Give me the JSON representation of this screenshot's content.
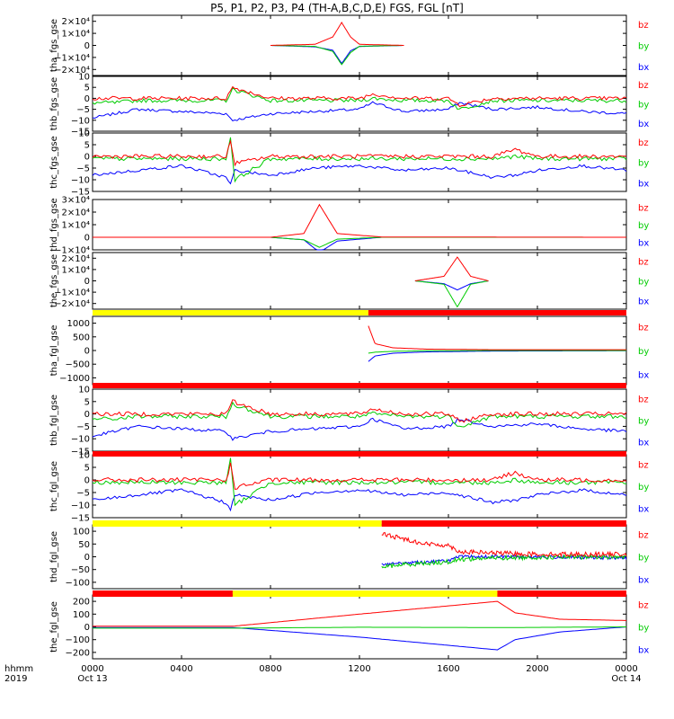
{
  "title": "P5, P1, P2, P3, P4 (TH-A,B,C,D,E) FGS, FGL [nT]",
  "x_axis": {
    "row1_label": "hhmm",
    "row2_label": "2019",
    "ticks": [
      "0000",
      "0400",
      "0800",
      "1200",
      "1600",
      "2000",
      "0000"
    ],
    "tick_hours": [
      0,
      4,
      8,
      12,
      16,
      20,
      24
    ],
    "date_labels": [
      {
        "hour": 0,
        "text": "Oct 13"
      },
      {
        "hour": 24,
        "text": "Oct 14"
      }
    ]
  },
  "colors": {
    "bx": "#0000ff",
    "by": "#00cc00",
    "bz": "#ff0000",
    "yellow": "#ffff00",
    "red": "#ff0000"
  },
  "chart_data": [
    {
      "type": "line",
      "ylabel": "tha_fgs_gse",
      "ylim": [
        -25000,
        25000
      ],
      "yticks": [
        {
          "v": 20000,
          "t": "2×10⁴"
        },
        {
          "v": 10000,
          "t": "1×10⁴"
        },
        {
          "v": 0,
          "t": "0"
        },
        {
          "v": -10000,
          "t": "−1×10⁴"
        },
        {
          "v": -20000,
          "t": "−2×10⁴"
        }
      ],
      "series_x": [
        8.0,
        10.0,
        10.8,
        11.2,
        11.6,
        12.0,
        14.0
      ],
      "series": [
        {
          "name": "bz",
          "values": [
            0,
            900,
            7000,
            19000,
            7000,
            900,
            0
          ]
        },
        {
          "name": "by",
          "values": [
            0,
            -800,
            -5000,
            -16000,
            -6000,
            -700,
            0
          ]
        },
        {
          "name": "bx",
          "values": [
            0,
            -1200,
            -4000,
            -15000,
            -4500,
            -900,
            0
          ]
        }
      ],
      "data_range": [
        8.0,
        14.0
      ]
    },
    {
      "type": "line",
      "ylabel": "thb_fgs_gse",
      "ylim": [
        -15,
        10
      ],
      "yticks": [
        {
          "v": 10,
          "t": "10"
        },
        {
          "v": 5,
          "t": "5"
        },
        {
          "v": 0,
          "t": "0"
        },
        {
          "v": -5,
          "t": "−5"
        },
        {
          "v": -10,
          "t": "−10"
        },
        {
          "v": -15,
          "t": "−15"
        }
      ],
      "series_x": [
        0,
        1,
        2,
        4,
        6,
        6.3,
        8,
        10,
        12,
        12.6,
        14,
        16,
        16.5,
        18,
        20,
        22,
        24
      ],
      "series": [
        {
          "name": "bz",
          "values": [
            0,
            0,
            0,
            0,
            0,
            5,
            0,
            0,
            0,
            2,
            0,
            0,
            -3,
            0,
            0,
            0,
            0
          ]
        },
        {
          "name": "by",
          "values": [
            -2,
            -2,
            -1,
            -1,
            -1,
            4,
            -1,
            -1,
            -1,
            0,
            -1,
            -1,
            -5,
            -1,
            -1,
            -1,
            -1
          ]
        },
        {
          "name": "bx",
          "values": [
            -9,
            -7,
            -5,
            -6,
            -7,
            -10,
            -7,
            -6,
            -5,
            -2,
            -6,
            -5,
            -2,
            -5,
            -4,
            -6,
            -7
          ]
        }
      ],
      "data_range": [
        0,
        24
      ]
    },
    {
      "type": "line",
      "ylabel": "thc_fgs_gse",
      "ylim": [
        -15,
        10
      ],
      "yticks": [
        {
          "v": 10,
          "t": "10"
        },
        {
          "v": 5,
          "t": "5"
        },
        {
          "v": 0,
          "t": "0"
        },
        {
          "v": -5,
          "t": "−5"
        },
        {
          "v": -10,
          "t": "−10"
        },
        {
          "v": -15,
          "t": "−15"
        }
      ],
      "series_x": [
        0,
        2,
        4,
        6,
        6.2,
        6.4,
        8,
        10,
        12,
        14,
        16,
        18,
        19,
        20,
        22,
        24
      ],
      "series": [
        {
          "name": "bz",
          "values": [
            0,
            0,
            0,
            0,
            6,
            -3,
            0,
            0,
            0,
            0,
            0,
            0,
            3,
            0,
            0,
            0
          ]
        },
        {
          "name": "by",
          "values": [
            -1,
            -1,
            -1,
            -1,
            8,
            -10,
            -1,
            -1,
            -1,
            -1,
            -1,
            -1,
            0,
            -1,
            -1,
            -1
          ]
        },
        {
          "name": "bx",
          "values": [
            -8,
            -6,
            -4,
            -9,
            -12,
            -6,
            -8,
            -5,
            -4,
            -6,
            -5,
            -9,
            -8,
            -6,
            -4,
            -6
          ]
        }
      ],
      "data_range": [
        0,
        24
      ]
    },
    {
      "type": "line",
      "ylabel": "thd_fgs_gse",
      "ylim": [
        -10000,
        30000
      ],
      "yticks": [
        {
          "v": 30000,
          "t": "3×10⁴"
        },
        {
          "v": 20000,
          "t": "2×10⁴"
        },
        {
          "v": 10000,
          "t": "1×10⁴"
        },
        {
          "v": 0,
          "t": "0"
        },
        {
          "v": -10000,
          "t": "−1×10⁴"
        }
      ],
      "series_x": [
        0,
        8,
        9.5,
        10.2,
        11,
        13,
        24
      ],
      "series": [
        {
          "name": "bz",
          "values": [
            0,
            0,
            3000,
            26000,
            3000,
            200,
            0
          ]
        },
        {
          "name": "by",
          "values": [
            0,
            0,
            -2000,
            -8000,
            -1500,
            0,
            0
          ]
        },
        {
          "name": "bx",
          "values": [
            0,
            0,
            -2000,
            -12000,
            -3000,
            0,
            0
          ]
        }
      ],
      "data_range": [
        0,
        24
      ]
    },
    {
      "type": "line",
      "ylabel": "the_fgs_gse",
      "ylim": [
        -25000,
        25000
      ],
      "yticks": [
        {
          "v": 20000,
          "t": "2×10⁴"
        },
        {
          "v": 10000,
          "t": "1×10⁴"
        },
        {
          "v": 0,
          "t": "0"
        },
        {
          "v": -10000,
          "t": "−1×10⁴"
        },
        {
          "v": -20000,
          "t": "−2×10⁴"
        }
      ],
      "series_x": [
        14.5,
        15.8,
        16.4,
        17.0,
        17.8
      ],
      "series": [
        {
          "name": "bz",
          "values": [
            0,
            4000,
            21000,
            4000,
            0
          ]
        },
        {
          "name": "by",
          "values": [
            0,
            -3000,
            -23000,
            -3000,
            0
          ]
        },
        {
          "name": "bx",
          "values": [
            0,
            -2500,
            -8000,
            -2500,
            0
          ]
        }
      ],
      "data_range": [
        14.5,
        17.8
      ]
    },
    {
      "type": "line",
      "ylabel": "tha_fgl_gse",
      "ylim": [
        -1250,
        1250
      ],
      "yticks": [
        {
          "v": 1000,
          "t": "1000"
        },
        {
          "v": 500,
          "t": "500"
        },
        {
          "v": 0,
          "t": "0"
        },
        {
          "v": -500,
          "t": "−500"
        },
        {
          "v": -1000,
          "t": "−1000"
        }
      ],
      "series_x": [
        12.4,
        12.7,
        13.5,
        15,
        18,
        24
      ],
      "series": [
        {
          "name": "bz",
          "values": [
            900,
            250,
            100,
            50,
            30,
            30
          ]
        },
        {
          "name": "by",
          "values": [
            -100,
            -60,
            -30,
            -10,
            0,
            0
          ]
        },
        {
          "name": "bx",
          "values": [
            -400,
            -200,
            -100,
            -50,
            -20,
            -10
          ]
        }
      ],
      "data_range": [
        12.4,
        24
      ]
    },
    {
      "type": "line",
      "ylabel": "thb_fgl_gse",
      "ylim": [
        -15,
        10
      ],
      "yticks": [
        {
          "v": 10,
          "t": "10"
        },
        {
          "v": 5,
          "t": "5"
        },
        {
          "v": 0,
          "t": "0"
        },
        {
          "v": -5,
          "t": "−5"
        },
        {
          "v": -10,
          "t": "−10"
        },
        {
          "v": -15,
          "t": "−15"
        }
      ],
      "series_x": [
        0,
        1,
        2,
        4,
        6,
        6.3,
        8,
        10,
        12,
        12.6,
        14,
        16,
        16.5,
        18,
        20,
        22,
        24
      ],
      "series": [
        {
          "name": "bz",
          "values": [
            0,
            0,
            0,
            0,
            0,
            5,
            0,
            0,
            0,
            2,
            0,
            0,
            -3,
            0,
            0,
            0,
            0
          ]
        },
        {
          "name": "by",
          "values": [
            -2,
            -2,
            -1,
            -1,
            -1,
            4,
            -1,
            -1,
            -1,
            0,
            -1,
            -1,
            -5,
            -1,
            -1,
            -1,
            -1
          ]
        },
        {
          "name": "bx",
          "values": [
            -9,
            -7,
            -5,
            -6,
            -7,
            -10,
            -7,
            -6,
            -5,
            -2,
            -6,
            -5,
            -2,
            -5,
            -4,
            -6,
            -7
          ]
        }
      ],
      "data_range": [
        0,
        24
      ]
    },
    {
      "type": "line",
      "ylabel": "thc_fgl_gse",
      "ylim": [
        -15,
        10
      ],
      "yticks": [
        {
          "v": 10,
          "t": "10"
        },
        {
          "v": 5,
          "t": "5"
        },
        {
          "v": 0,
          "t": "0"
        },
        {
          "v": -5,
          "t": "−5"
        },
        {
          "v": -10,
          "t": "−10"
        },
        {
          "v": -15,
          "t": "−15"
        }
      ],
      "series_x": [
        0,
        2,
        4,
        6,
        6.2,
        6.4,
        8,
        10,
        12,
        14,
        16,
        18,
        19,
        20,
        22,
        24
      ],
      "series": [
        {
          "name": "bz",
          "values": [
            0,
            0,
            0,
            0,
            6,
            -3,
            0,
            0,
            0,
            0,
            0,
            0,
            3,
            0,
            0,
            0
          ]
        },
        {
          "name": "by",
          "values": [
            -1,
            -1,
            -1,
            -1,
            8,
            -10,
            -1,
            -1,
            -1,
            -1,
            -1,
            -1,
            0,
            -1,
            -1,
            -1
          ]
        },
        {
          "name": "bx",
          "values": [
            -8,
            -6,
            -4,
            -9,
            -12,
            -6,
            -8,
            -5,
            -4,
            -6,
            -5,
            -9,
            -8,
            -6,
            -4,
            -6
          ]
        }
      ],
      "data_range": [
        0,
        24
      ]
    },
    {
      "type": "line",
      "ylabel": "thd_fgl_gse",
      "ylim": [
        -125,
        125
      ],
      "yticks": [
        {
          "v": 100,
          "t": "100"
        },
        {
          "v": 50,
          "t": "50"
        },
        {
          "v": 0,
          "t": "0"
        },
        {
          "v": -50,
          "t": "−50"
        },
        {
          "v": -100,
          "t": "−100"
        }
      ],
      "series_x": [
        13,
        14,
        15,
        16,
        16.5,
        18,
        20,
        24
      ],
      "series": [
        {
          "name": "bz",
          "values": [
            90,
            70,
            50,
            45,
            20,
            15,
            10,
            10
          ]
        },
        {
          "name": "by",
          "values": [
            -40,
            -30,
            -25,
            -20,
            -10,
            -5,
            -2,
            0
          ]
        },
        {
          "name": "bx",
          "values": [
            -30,
            -25,
            -20,
            -15,
            0,
            0,
            0,
            -5
          ]
        }
      ],
      "data_range": [
        13,
        24
      ]
    },
    {
      "type": "line",
      "ylabel": "the_fgl_gse",
      "ylim": [
        -250,
        250
      ],
      "yticks": [
        {
          "v": 200,
          "t": "200"
        },
        {
          "v": 100,
          "t": "100"
        },
        {
          "v": 0,
          "t": "0"
        },
        {
          "v": -100,
          "t": "−100"
        },
        {
          "v": -200,
          "t": "−200"
        }
      ],
      "series_x": [
        0,
        3,
        6.3,
        12,
        18.2,
        19,
        21,
        24
      ],
      "series": [
        {
          "name": "bz",
          "values": [
            5,
            5,
            5,
            100,
            200,
            110,
            60,
            50
          ]
        },
        {
          "name": "by",
          "values": [
            -10,
            -10,
            -10,
            -3,
            -5,
            -5,
            -3,
            0
          ]
        },
        {
          "name": "bx",
          "values": [
            -5,
            -5,
            -5,
            -80,
            -180,
            -100,
            -40,
            0
          ]
        }
      ],
      "data_range": [
        0,
        24
      ]
    }
  ],
  "status_bars": [
    {
      "segments": [
        {
          "from": 0,
          "to": 12.4,
          "color": "yellow"
        },
        {
          "from": 12.4,
          "to": 24,
          "color": "red"
        }
      ]
    },
    {
      "segments": [
        {
          "from": 0,
          "to": 24,
          "color": "red"
        }
      ]
    },
    {
      "segments": [
        {
          "from": 0,
          "to": 24,
          "color": "red"
        }
      ]
    },
    {
      "segments": [
        {
          "from": 0,
          "to": 13,
          "color": "yellow"
        },
        {
          "from": 13,
          "to": 24,
          "color": "red"
        }
      ]
    },
    {
      "segments": [
        {
          "from": 0,
          "to": 6.3,
          "color": "red"
        },
        {
          "from": 6.3,
          "to": 18.2,
          "color": "yellow"
        },
        {
          "from": 18.2,
          "to": 24,
          "color": "red"
        }
      ]
    }
  ]
}
